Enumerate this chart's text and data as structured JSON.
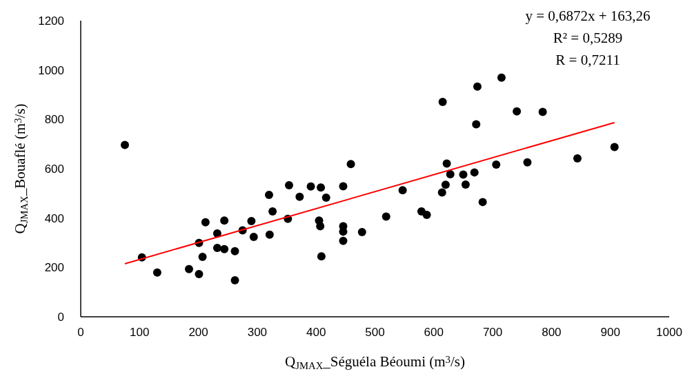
{
  "chart_data": {
    "type": "scatter",
    "xlabel": "Q$_{JMAX}$_Séguéla Béoumi (m$^{3}$/s)",
    "ylabel": "Q$_{JMAX}$_Bouaflé (m$^{3}$/s)",
    "xlim": [
      0,
      1000
    ],
    "xticks": [
      0,
      100,
      200,
      300,
      400,
      500,
      600,
      700,
      800,
      900,
      1000
    ],
    "ylim": [
      0,
      1200
    ],
    "yticks": [
      0,
      200,
      400,
      600,
      800,
      1000,
      1200
    ],
    "grid": false,
    "annotations": [
      "y = 0,6872x + 163,26",
      "R² = 0,5289",
      "R = 0,7211"
    ],
    "series": [
      {
        "color": "#000000",
        "marker": "circle",
        "x": [
          75,
          104,
          130,
          184,
          201,
          201,
          207,
          212,
          232,
          232,
          244,
          244,
          262,
          262,
          275,
          290,
          294,
          320,
          321,
          326,
          352,
          354,
          372,
          391,
          405,
          407,
          408,
          417,
          409,
          446,
          446,
          446,
          446,
          459,
          478,
          519,
          547,
          579,
          588,
          615,
          614,
          620,
          622,
          628,
          650,
          654,
          669,
          672,
          674,
          683,
          706,
          715,
          741,
          759,
          785,
          844,
          907
        ],
        "values": [
          696,
          241,
          179,
          193,
          299,
          173,
          243,
          383,
          338,
          279,
          274,
          390,
          266,
          148,
          350,
          388,
          324,
          494,
          333,
          427,
          397,
          533,
          486,
          528,
          390,
          367,
          524,
          483,
          245,
          529,
          367,
          345,
          308,
          619,
          343,
          406,
          513,
          427,
          413,
          871,
          504,
          535,
          621,
          578,
          576,
          536,
          585,
          780,
          933,
          465,
          617,
          969,
          832,
          626,
          830,
          642,
          688
        ]
      },
      {
        "type": "line",
        "color": "#ff0000",
        "marker": "none",
        "line_style": "solid",
        "x": [
          75,
          907
        ],
        "values": [
          215,
          787
        ]
      }
    ]
  }
}
